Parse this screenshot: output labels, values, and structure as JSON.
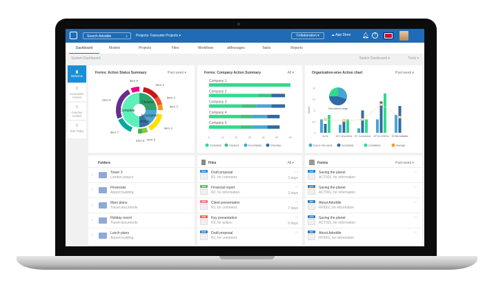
{
  "header": {
    "search_placeholder": "Search Adoddle",
    "project_selector": "Projects: Favourite Projects",
    "collaboration": "Collaboration",
    "app_store": "App Store"
  },
  "nav": {
    "tabs": [
      "Dashboard",
      "Models",
      "Projects",
      "Files",
      "Workflows",
      "aMessages",
      "Tasks",
      "Reports"
    ],
    "active": "Dashboard"
  },
  "subbar": {
    "title": "System Dashboard",
    "switch": "Switch Dashboard",
    "tools": "Tools"
  },
  "sidebar": {
    "welcome": "Welcome",
    "stats": [
      {
        "value": "0",
        "label": "Incomplete Actions"
      },
      {
        "value": "0",
        "label": "Overdue Actions"
      },
      {
        "value": "0",
        "label": "Due Today"
      }
    ]
  },
  "colors": {
    "brand": "#1f6bb5",
    "complete": "#2fdc8b",
    "cleared": "#3fbf7f",
    "incomplete": "#49a6d3",
    "overdue": "#2f6aa5",
    "average": "#f39c2b"
  },
  "chart_data": [
    {
      "type": "sunburst",
      "title": "Forms: Action Status Summary",
      "filter": "Past week",
      "inner": [
        {
          "name": "Cleared",
          "value": 25,
          "color": "#2ea36e"
        },
        {
          "name": "Incomplete",
          "value": 15,
          "color": "#4aa8d0"
        },
        {
          "name": "Overdue",
          "value": 10,
          "color": "#3a6ea5"
        },
        {
          "name": "Complete",
          "value": 50,
          "color": "#5ef0b9"
        }
      ],
      "outer": [
        {
          "name": "item 1",
          "from": 3,
          "to": 15,
          "color": "#c8161d"
        },
        {
          "name": "item 2",
          "from": 15,
          "to": 21,
          "color": "#f0522a"
        },
        {
          "name": "item 3",
          "from": 21,
          "to": 25,
          "color": "#f7921e"
        },
        {
          "name": "item 4",
          "from": 28,
          "to": 42,
          "color": "#ffe000"
        },
        {
          "name": "item 5",
          "from": 44,
          "to": 48,
          "color": "#8cc63f"
        },
        {
          "name": "item 6",
          "from": 48,
          "to": 51,
          "color": "#39b54a"
        },
        {
          "name": "item 7",
          "from": 56,
          "to": 68,
          "color": "#00a99d"
        },
        {
          "name": "item 8",
          "from": 69,
          "to": 92,
          "color": "#662d91"
        },
        {
          "name": "item 9",
          "from": 94,
          "to": 100,
          "color": "#ec008c"
        }
      ]
    },
    {
      "type": "bar",
      "orientation": "horizontal",
      "stacked": true,
      "title": "Forms: Company Action Summary",
      "filter": "All",
      "categories": [
        "Company 1",
        "Company 2",
        "Company 3",
        "Company 4",
        "Company 5"
      ],
      "series": [
        {
          "name": "Complete",
          "values": [
            60,
            36,
            24,
            23,
            23
          ]
        },
        {
          "name": "Cleared",
          "values": [
            0,
            10,
            11,
            9,
            9
          ]
        },
        {
          "name": "Incomplete",
          "values": [
            0,
            0,
            11,
            11,
            11
          ]
        },
        {
          "name": "Overdue",
          "values": [
            0,
            10,
            10,
            9,
            9
          ]
        }
      ],
      "xlim": [
        0,
        60
      ],
      "xticks": [
        "0",
        "10",
        "20",
        "30",
        "40",
        "50",
        "60"
      ]
    },
    {
      "type": "bar",
      "title": "Organization-wise Action chart",
      "filter": "Past week",
      "ylabel": "Values",
      "categories": [
        "Asite",
        "AS Consultants",
        "GC Contractors",
        "AP Architects",
        "SC Sub-Contractors"
      ],
      "series": [
        {
          "name": "Due in One week",
          "values": [
            3,
            1.8,
            1,
            3,
            4
          ]
        },
        {
          "name": "Incomplete",
          "values": [
            2,
            3,
            5,
            7,
            6
          ]
        },
        {
          "name": "Completed",
          "values": [
            4,
            3,
            3,
            8.8,
            0
          ]
        },
        {
          "name": "Average",
          "type": "line",
          "values": [
            3,
            2.7,
            3,
            6.3,
            3.5
          ]
        }
      ],
      "ylim": [
        0,
        10
      ],
      "yticks": [
        "0",
        "2.5",
        "5",
        "7.5",
        "10"
      ],
      "inset_pie": {
        "label": "Total Actions usage",
        "values": [
          30,
          45,
          25
        ]
      }
    }
  ],
  "folders": {
    "title": "Folders",
    "items": [
      {
        "name": "Tower 3",
        "desc": "London project"
      },
      {
        "name": "Financials",
        "desc": "Airport building"
      },
      {
        "name": "Mars plans",
        "desc": "Travel documents"
      },
      {
        "name": "Holiday resort",
        "desc": "Travel documents"
      },
      {
        "name": "Lunch plans",
        "desc": "Airport building"
      }
    ]
  },
  "files": {
    "title": "Files",
    "filter": "All",
    "items": [
      {
        "type": "DOC",
        "color": "#2f7fc1",
        "name": "Draft proposal",
        "desc": "R1, for comment.",
        "age": "2 days"
      },
      {
        "type": "XLS",
        "color": "#5cb85c",
        "name": "Financial report",
        "desc": "R2, for information.",
        "age": "2 days"
      },
      {
        "type": "PPT",
        "color": "#f0707a",
        "name": "Client presentation",
        "desc": "R1, for comment.",
        "age": "7 days"
      },
      {
        "type": "PDF",
        "color": "#f05a4f",
        "name": "Key presentation",
        "desc": "R3, for action.",
        "age": "5 days"
      },
      {
        "type": "DOC",
        "color": "#2f7fc1",
        "name": "Draft proposal",
        "desc": "R1, for comment.",
        "age": ""
      }
    ]
  },
  "forms": {
    "title": "Forms",
    "filter": "Past week",
    "items": [
      {
        "type": "ACT",
        "name": "Saving the planet",
        "desc": "ACT001, for information"
      },
      {
        "type": "ACT",
        "name": "Saving the planet",
        "desc": "ACT001, for information"
      },
      {
        "type": "RFI",
        "name": "About Adoddle",
        "desc": "RFI001, for information"
      },
      {
        "type": "ACT",
        "name": "Saving the planet",
        "desc": "ACT001, for information"
      },
      {
        "type": "RFI",
        "name": "About Adoddle",
        "desc": "RFI001, for information"
      }
    ]
  }
}
